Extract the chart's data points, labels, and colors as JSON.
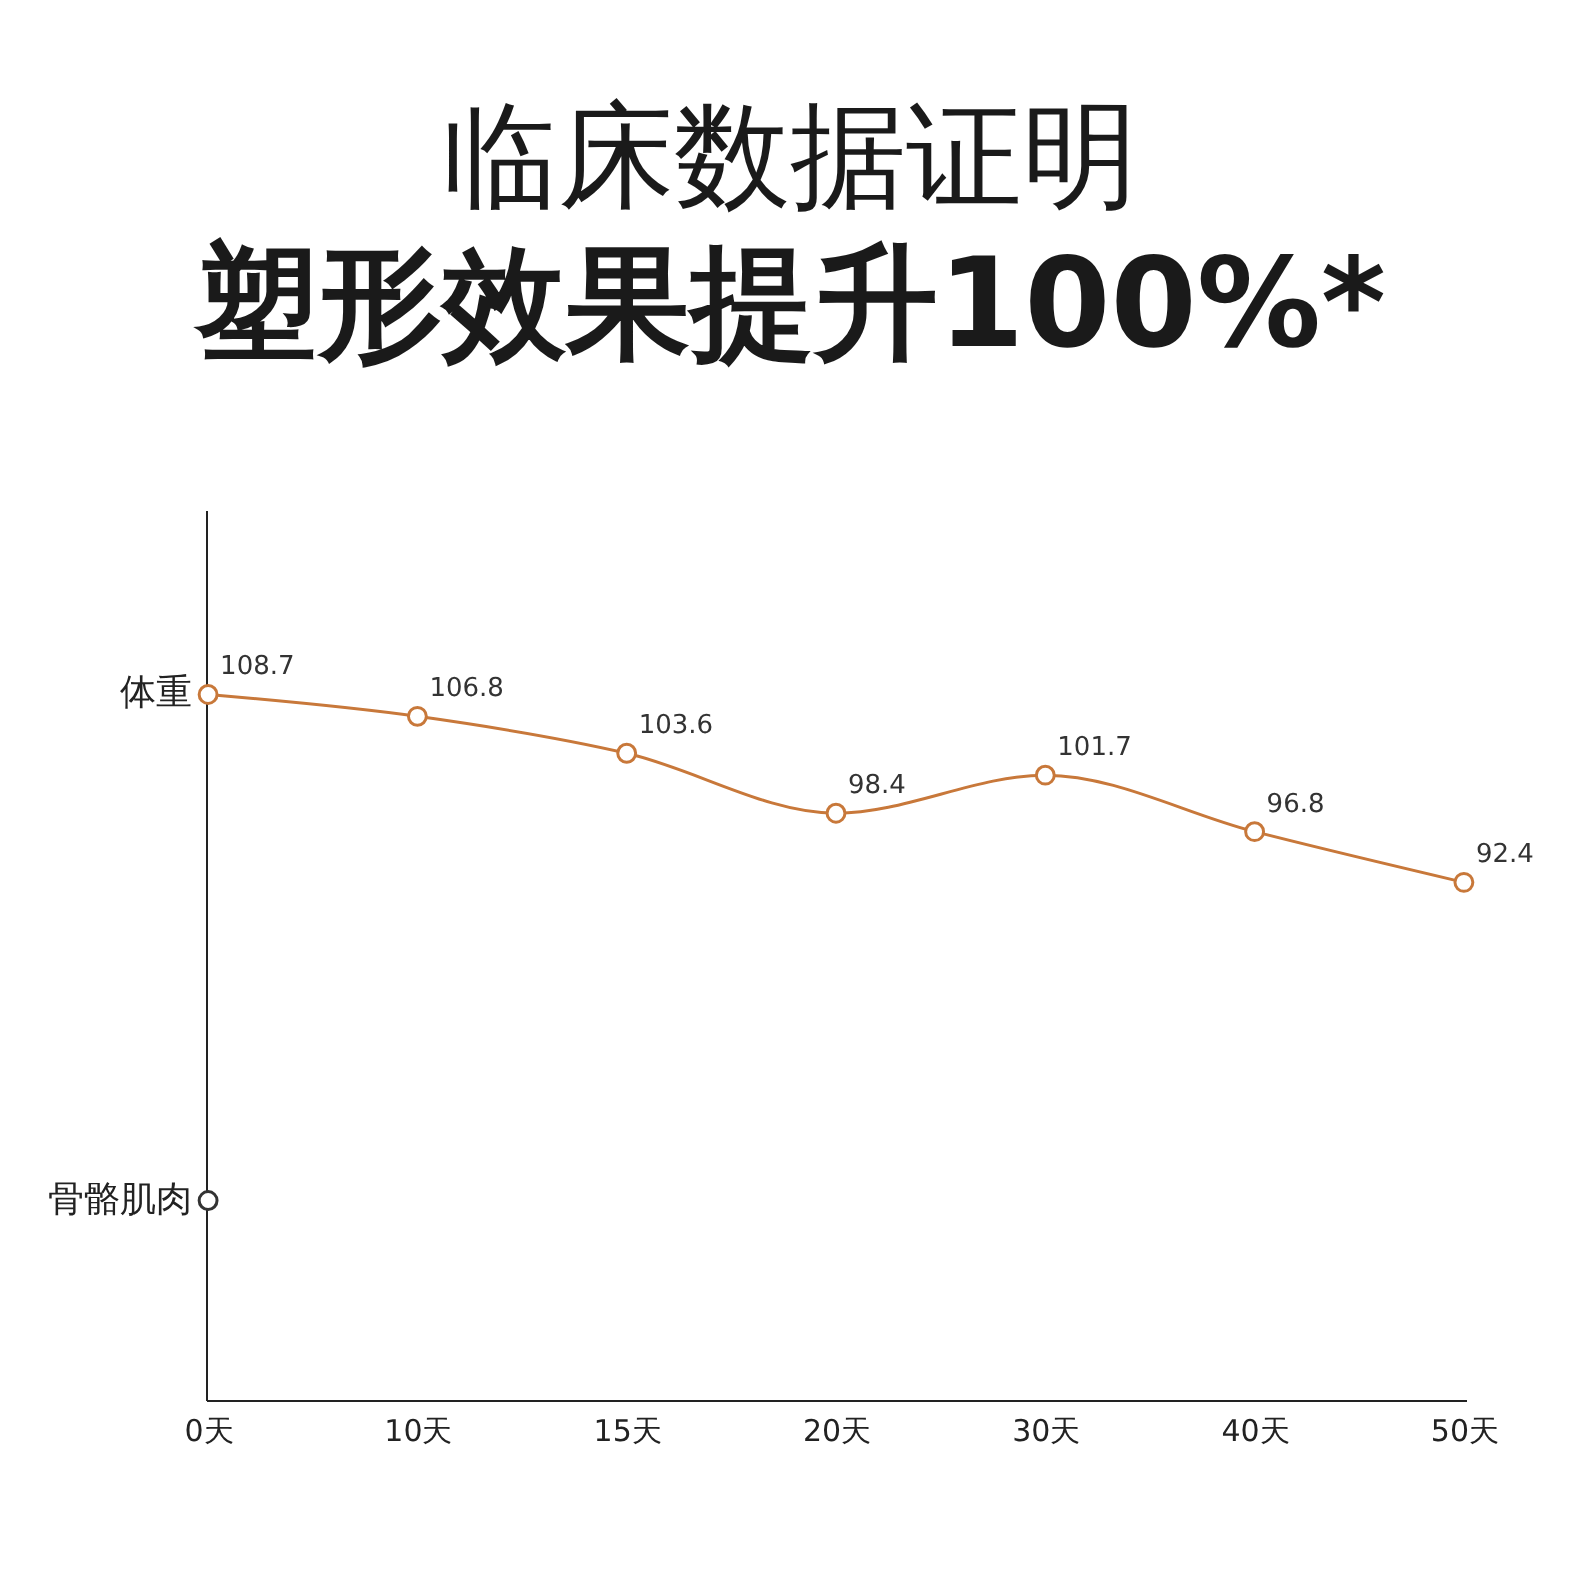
{
  "chart_data": {
    "type": "line",
    "title": "临床数据证明",
    "subtitle": "塑形效果提升100%*",
    "categories": [
      "0天",
      "10天",
      "15天",
      "20天",
      "30天",
      "40天",
      "50天"
    ],
    "series": [
      {
        "name": "体重",
        "color": "#c8783a",
        "values": [
          108.7,
          106.8,
          103.6,
          98.4,
          101.7,
          96.8,
          92.4
        ],
        "value_labels": [
          "108.7",
          "106.8",
          "103.6",
          "98.4",
          "101.7",
          "96.8",
          "92.4"
        ]
      },
      {
        "name": "骨骼肌肉",
        "color": "#333333",
        "values": [
          64.8,
          null,
          null,
          null,
          null,
          null,
          null
        ]
      }
    ],
    "ylim": [
      47.5,
      124.7
    ],
    "grid": false,
    "marker": "circle",
    "line_style": "solid"
  }
}
